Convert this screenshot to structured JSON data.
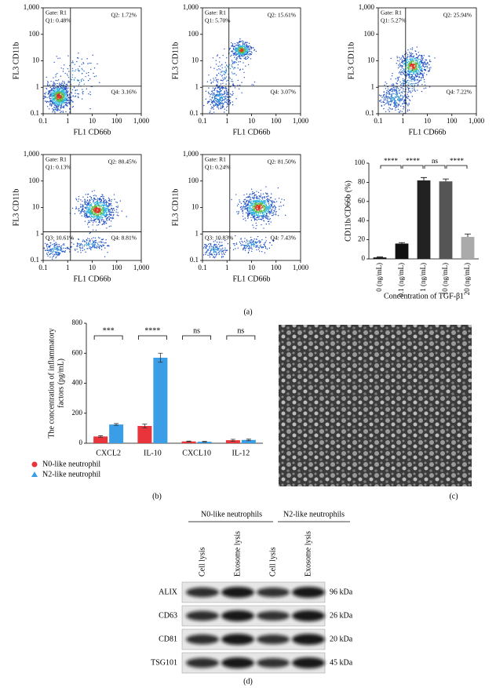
{
  "chart_data": [
    {
      "type": "flow",
      "xlabel": "FL1 CD66b",
      "ylabel": "FL3 CD11b",
      "gate": "Gate: R1",
      "xscale": "log",
      "yscale": "log",
      "xlim": [
        0.1,
        1000
      ],
      "ylim": [
        0.1,
        1000
      ],
      "xticks": [
        0.1,
        1,
        10,
        100,
        {
          "value": 1000,
          "label": "1,000"
        }
      ],
      "yticks": [
        0.1,
        1,
        10,
        100,
        {
          "value": 1000,
          "label": "1,000"
        }
      ],
      "quadrant": [
        1.3,
        1.1
      ],
      "quadrant_labels": {
        "Q1": "Q1: 0.48%",
        "Q2": "Q2: 1.72%",
        "Q4": "Q4: 3.16%"
      }
    },
    {
      "type": "flow",
      "xlabel": "FL1 CD66b",
      "ylabel": "FL3 CD11b",
      "gate": "Gate: R1",
      "xscale": "log",
      "yscale": "log",
      "xlim": [
        0.1,
        1000
      ],
      "ylim": [
        0.1,
        1000
      ],
      "xticks": [
        0.1,
        1,
        10,
        100,
        {
          "value": 1000,
          "label": "1,000"
        }
      ],
      "yticks": [
        0.1,
        1,
        10,
        100,
        {
          "value": 1000,
          "label": "1,000"
        }
      ],
      "quadrant": [
        1.2,
        1.1
      ],
      "quadrant_labels": {
        "Q1": "Q1: 5.70%",
        "Q2": "Q2: 15.61%",
        "Q4": "Q4: 3.07%"
      }
    },
    {
      "type": "flow",
      "xlabel": "FL1 CD66b",
      "ylabel": "FL3 CD11b",
      "gate": "Gate: R1",
      "xscale": "log",
      "yscale": "log",
      "xlim": [
        0.1,
        1000
      ],
      "ylim": [
        0.1,
        1000
      ],
      "xticks": [
        0.1,
        1,
        10,
        100,
        {
          "value": 1000,
          "label": "1,000"
        }
      ],
      "yticks": [
        0.1,
        1,
        10,
        100,
        {
          "value": 1000,
          "label": "1,000"
        }
      ],
      "quadrant": [
        1.3,
        1.1
      ],
      "quadrant_labels": {
        "Q1": "Q1: 5.27%",
        "Q2": "Q2: 25.94%",
        "Q4": "Q4: 7.22%"
      }
    },
    {
      "type": "flow",
      "xlabel": "FL1 CD66b",
      "ylabel": "FL3 CD11b",
      "gate": "Gate: R1",
      "xscale": "log",
      "yscale": "log",
      "xlim": [
        0.1,
        1000
      ],
      "ylim": [
        0.1,
        1000
      ],
      "xticks": [
        0.1,
        1,
        10,
        100,
        {
          "value": 1000,
          "label": "1,000"
        }
      ],
      "yticks": [
        0.1,
        1,
        10,
        100,
        {
          "value": 1000,
          "label": "1,000"
        }
      ],
      "quadrant": [
        1.3,
        1.2
      ],
      "quadrant_labels": {
        "Q1": "Q1: 0.13%",
        "Q2": "Q2: 80.45%",
        "Q3": "Q3: 10.61%",
        "Q4": "Q4: 8.81%"
      }
    },
    {
      "type": "flow",
      "xlabel": "FL1 CD66b",
      "ylabel": "FL3 CD11b",
      "gate": "Gate: R1",
      "xscale": "log",
      "yscale": "log",
      "xlim": [
        0.1,
        1000
      ],
      "ylim": [
        0.1,
        1000
      ],
      "xticks": [
        0.1,
        1,
        10,
        100,
        {
          "value": 1000,
          "label": "1,000"
        }
      ],
      "yticks": [
        0.1,
        1,
        10,
        100,
        {
          "value": 1000,
          "label": "1,000"
        }
      ],
      "quadrant": [
        1.3,
        1.2
      ],
      "quadrant_labels": {
        "Q1": "Q1: 0.24%",
        "Q2": "Q2: 81.50%",
        "Q3": "Q3: 10.83%",
        "Q4": "Q4: 7.43%"
      }
    },
    {
      "type": "bar",
      "xlabel": "Concentration of TGF-β1",
      "ylabel": "CD11b/CD66b (%)",
      "categories": [
        "0 (ng/mL)",
        "0.1 (ng/mL)",
        "1 (ng/mL)",
        "10 (ng/mL)",
        "20 (ng/mL)"
      ],
      "values": [
        1.5,
        16,
        82,
        81,
        23
      ],
      "errors": [
        0.5,
        1,
        3,
        2.5,
        3
      ],
      "colors": [
        "#111111",
        "#111111",
        "#222222",
        "#555555",
        "#aaaaaa"
      ],
      "ylim": [
        0,
        100
      ],
      "yticks": [
        0,
        20,
        40,
        60,
        80,
        100
      ],
      "comparisons": [
        {
          "pair": [
            0,
            1
          ],
          "label": "****"
        },
        {
          "pair": [
            1,
            2
          ],
          "label": "****"
        },
        {
          "pair": [
            2,
            3
          ],
          "label": "ns"
        },
        {
          "pair": [
            3,
            4
          ],
          "label": "****"
        }
      ]
    },
    {
      "type": "grouped_bar",
      "ylabel": [
        "The concentration of inflammatory",
        "factors (pg/mL)"
      ],
      "categories": [
        "CXCL2",
        "IL-10",
        "CXCL10",
        "IL-12"
      ],
      "series": [
        {
          "name": "N0-like neutrophil",
          "color": "#e8343a",
          "marker": "circle",
          "values": [
            45,
            115,
            12,
            20
          ],
          "errors": [
            5,
            12,
            2,
            6
          ]
        },
        {
          "name": "N2-like neutrophil",
          "color": "#3a9ee6",
          "marker": "triangle",
          "values": [
            125,
            570,
            10,
            22
          ],
          "errors": [
            6,
            30,
            2,
            5
          ]
        }
      ],
      "ylim": [
        0,
        800
      ],
      "yticks": [
        0,
        200,
        400,
        600,
        800
      ],
      "significance": [
        "***",
        "****",
        "ns",
        "ns"
      ]
    }
  ],
  "panel_labels": [
    "(a)",
    "(b)",
    "(c)",
    "(d)"
  ],
  "blot": {
    "groups": [
      "N0-like neutrophils",
      "N2-like neutrophils"
    ],
    "lanes": [
      "Cell lysis",
      "Exosome lysis",
      "Cell lysis",
      "Exosome lysis"
    ],
    "rows": [
      {
        "protein": "ALIX",
        "size": "96 kDa"
      },
      {
        "protein": "CD63",
        "size": "26 kDa"
      },
      {
        "protein": "CD81",
        "size": "20 kDa"
      },
      {
        "protein": "TSG101",
        "size": "45 kDa"
      }
    ]
  }
}
